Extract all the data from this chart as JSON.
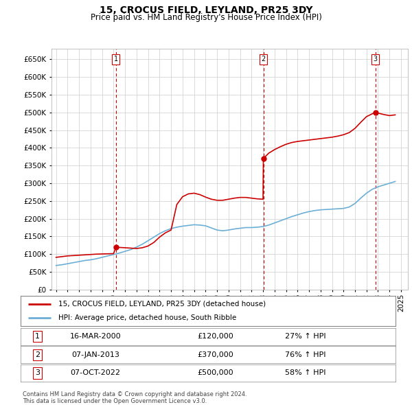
{
  "title": "15, CROCUS FIELD, LEYLAND, PR25 3DY",
  "subtitle": "Price paid vs. HM Land Registry's House Price Index (HPI)",
  "ylabel_ticks": [
    "£0",
    "£50K",
    "£100K",
    "£150K",
    "£200K",
    "£250K",
    "£300K",
    "£350K",
    "£400K",
    "£450K",
    "£500K",
    "£550K",
    "£600K",
    "£650K"
  ],
  "ytick_values": [
    0,
    50000,
    100000,
    150000,
    200000,
    250000,
    300000,
    350000,
    400000,
    450000,
    500000,
    550000,
    600000,
    650000
  ],
  "ylim": [
    0,
    680000
  ],
  "hpi_color": "#6baed6",
  "price_color": "#cc0000",
  "vline_color": "#cc0000",
  "grid_color": "#cccccc",
  "bg_color": "#ffffff",
  "transaction_dates_decimal": [
    2000.21,
    2013.03,
    2022.77
  ],
  "transaction_prices": [
    120000,
    370000,
    500000
  ],
  "transaction_labels": [
    "1",
    "2",
    "3"
  ],
  "legend_line1": "15, CROCUS FIELD, LEYLAND, PR25 3DY (detached house)",
  "legend_line2": "HPI: Average price, detached house, South Ribble",
  "table_rows": [
    [
      "1",
      "16-MAR-2000",
      "£120,000",
      "27% ↑ HPI"
    ],
    [
      "2",
      "07-JAN-2013",
      "£370,000",
      "76% ↑ HPI"
    ],
    [
      "3",
      "07-OCT-2022",
      "£500,000",
      "58% ↑ HPI"
    ]
  ],
  "footnote": "Contains HM Land Registry data © Crown copyright and database right 2024.\nThis data is licensed under the Open Government Licence v3.0.",
  "hpi_x": [
    1995.0,
    1995.5,
    1996.0,
    1996.5,
    1997.0,
    1997.5,
    1998.0,
    1998.5,
    1999.0,
    1999.5,
    2000.0,
    2000.5,
    2001.0,
    2001.5,
    2002.0,
    2002.5,
    2003.0,
    2003.5,
    2004.0,
    2004.5,
    2005.0,
    2005.5,
    2006.0,
    2006.5,
    2007.0,
    2007.5,
    2008.0,
    2008.5,
    2009.0,
    2009.5,
    2010.0,
    2010.5,
    2011.0,
    2011.5,
    2012.0,
    2012.5,
    2013.0,
    2013.5,
    2014.0,
    2014.5,
    2015.0,
    2015.5,
    2016.0,
    2016.5,
    2017.0,
    2017.5,
    2018.0,
    2018.5,
    2019.0,
    2019.5,
    2020.0,
    2020.5,
    2021.0,
    2021.5,
    2022.0,
    2022.5,
    2023.0,
    2023.5,
    2024.0,
    2024.5
  ],
  "hpi_y": [
    68000,
    70000,
    73000,
    76000,
    79000,
    82000,
    84000,
    87000,
    91000,
    95000,
    99000,
    103000,
    108000,
    113000,
    120000,
    128000,
    138000,
    148000,
    158000,
    166000,
    172000,
    176000,
    179000,
    181000,
    183000,
    182000,
    180000,
    174000,
    168000,
    166000,
    168000,
    171000,
    173000,
    175000,
    175000,
    176000,
    178000,
    182000,
    188000,
    194000,
    200000,
    206000,
    211000,
    216000,
    220000,
    223000,
    225000,
    226000,
    227000,
    228000,
    229000,
    233000,
    243000,
    258000,
    272000,
    283000,
    290000,
    295000,
    300000,
    305000
  ],
  "price_x": [
    1995.0,
    1995.5,
    1996.0,
    1996.5,
    1997.0,
    1997.5,
    1998.0,
    1998.5,
    1999.0,
    1999.5,
    2000.0,
    2000.21,
    2000.5,
    2001.0,
    2001.5,
    2002.0,
    2002.5,
    2003.0,
    2003.5,
    2004.0,
    2004.5,
    2005.0,
    2005.5,
    2006.0,
    2006.5,
    2007.0,
    2007.5,
    2008.0,
    2008.5,
    2009.0,
    2009.5,
    2010.0,
    2010.5,
    2011.0,
    2011.5,
    2012.0,
    2012.5,
    2013.0,
    2013.03,
    2013.5,
    2014.0,
    2014.5,
    2015.0,
    2015.5,
    2016.0,
    2016.5,
    2017.0,
    2017.5,
    2018.0,
    2018.5,
    2019.0,
    2019.5,
    2020.0,
    2020.5,
    2021.0,
    2021.5,
    2022.0,
    2022.5,
    2022.77,
    2023.0,
    2023.5,
    2024.0,
    2024.5
  ],
  "price_y": [
    91000,
    93000,
    95000,
    96000,
    97000,
    98000,
    99000,
    100000,
    100500,
    101000,
    101500,
    120000,
    119000,
    118000,
    117000,
    116000,
    118000,
    123000,
    133000,
    148000,
    160000,
    168000,
    240000,
    262000,
    270000,
    272000,
    268000,
    261000,
    255000,
    252000,
    252000,
    255000,
    258000,
    260000,
    260000,
    258000,
    256000,
    255000,
    370000,
    385000,
    395000,
    403000,
    410000,
    415000,
    418000,
    420000,
    422000,
    424000,
    426000,
    428000,
    430000,
    433000,
    437000,
    443000,
    455000,
    472000,
    488000,
    496000,
    500000,
    498000,
    494000,
    491000,
    493000
  ]
}
